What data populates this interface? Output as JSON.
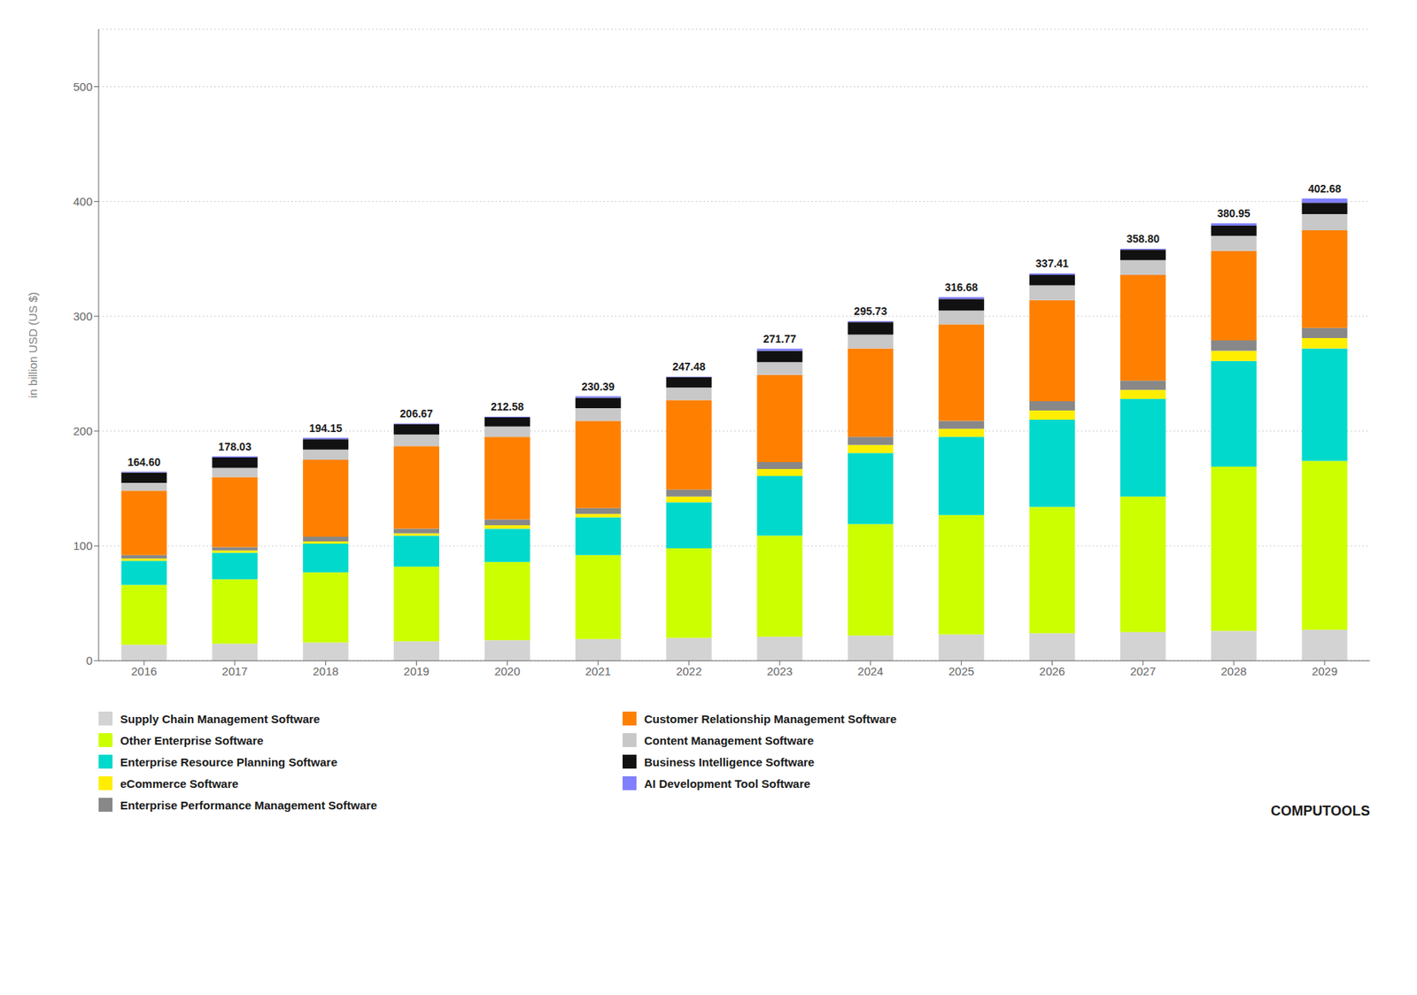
{
  "chart_data": {
    "type": "bar",
    "stacked": true,
    "grid": true,
    "legend": "bottom",
    "ylabel": "in billion USD (US $)",
    "categories": [
      "2016",
      "2017",
      "2018",
      "2019",
      "2020",
      "2021",
      "2022",
      "2023",
      "2024",
      "2025",
      "2026",
      "2027",
      "2028",
      "2029"
    ],
    "ylim": [
      0,
      550
    ],
    "yticks": [
      0,
      100,
      200,
      300,
      400,
      500
    ],
    "totals": [
      164.6,
      178.03,
      194.15,
      206.67,
      212.58,
      230.39,
      247.48,
      271.77,
      295.73,
      316.68,
      337.41,
      358.8,
      380.95,
      402.68
    ],
    "total_labels": [
      "164.60",
      "178.03",
      "194.15",
      "206.67",
      "212.58",
      "230.39",
      "247.48",
      "271.77",
      "295.73",
      "316.68",
      "337.41",
      "358.80",
      "380.95",
      "402.68"
    ],
    "series": [
      {
        "name": "Supply Chain Management Software",
        "color": "#d3d3d3",
        "values": [
          14,
          15.0025,
          16,
          17,
          18,
          19,
          20,
          21,
          22,
          23,
          24,
          25,
          26,
          27
        ]
      },
      {
        "name": "Other Enterprise Software",
        "color": "#ccff00",
        "values": [
          52,
          56.0094,
          61,
          65,
          68,
          73,
          78,
          88,
          97,
          104,
          110,
          118,
          143,
          147
        ]
      },
      {
        "name": "Enterprise Resource Planning Software",
        "color": "#00d9cc",
        "values": [
          21,
          23.0039,
          25,
          27,
          29,
          33,
          40,
          52,
          62,
          68,
          76,
          85,
          92,
          98
        ]
      },
      {
        "name": "eCommerce Software",
        "color": "#ffee00",
        "values": [
          2,
          2.0003,
          2,
          2,
          3,
          3,
          5,
          6,
          7,
          7,
          8,
          8,
          9,
          9
        ]
      },
      {
        "name": "Enterprise Performance Management Software",
        "color": "#888888",
        "values": [
          3,
          3.0005,
          4,
          4,
          5,
          5,
          6,
          6,
          7,
          7,
          8,
          8,
          9,
          9
        ]
      },
      {
        "name": "Customer Relationship Management Software",
        "color": "#ff8000",
        "values": [
          56,
          61.0103,
          67,
          72,
          72,
          76,
          78,
          76,
          77,
          84,
          88,
          92,
          78,
          85
        ]
      },
      {
        "name": "Content Management Software",
        "color": "#c8c8c8",
        "values": [
          7,
          8.0013,
          9,
          10,
          9,
          11,
          11,
          11,
          12,
          12,
          13,
          13,
          13,
          14
        ]
      },
      {
        "name": "Business Intelligence Software",
        "color": "#111111",
        "values": [
          9,
          9.0015,
          9,
          9,
          8,
          9,
          9,
          10,
          11,
          10,
          9,
          9,
          9,
          10
        ]
      },
      {
        "name": "AI Development Tool Software",
        "color": "#8080ff",
        "values": [
          0.6,
          1.0002,
          1.15,
          0.67,
          0.58,
          1.39,
          0.48,
          1.77,
          0.73,
          1.68,
          1.41,
          0.8,
          1.95,
          3.68
        ]
      }
    ],
    "annotations": [
      "COMPUTOOLS"
    ]
  }
}
